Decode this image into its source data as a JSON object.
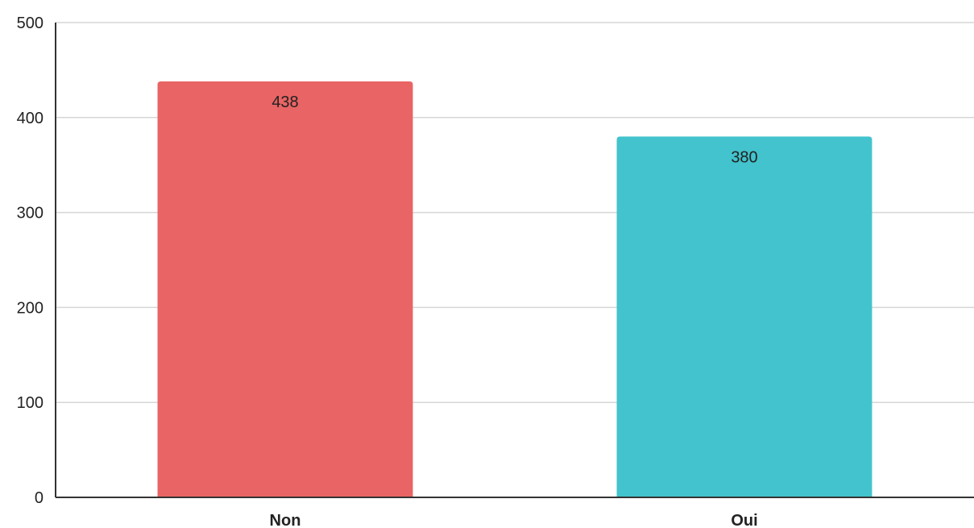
{
  "chart_data": {
    "type": "bar",
    "categories": [
      "Non",
      "Oui"
    ],
    "values": [
      438,
      380
    ],
    "data_labels": [
      "438",
      "380"
    ],
    "colors": [
      "#e96464",
      "#42c3cd"
    ],
    "ylim": [
      0,
      500
    ],
    "yticks": [
      0,
      100,
      200,
      300,
      400,
      500
    ],
    "ytick_labels": [
      "0",
      "100",
      "200",
      "300",
      "400",
      "500"
    ],
    "grid": true,
    "legend": "none"
  }
}
